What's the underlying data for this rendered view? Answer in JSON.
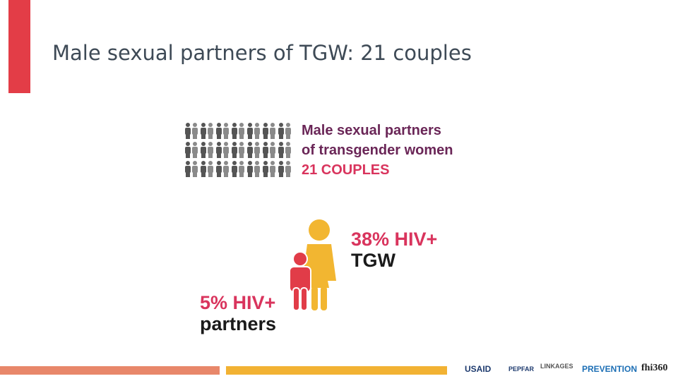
{
  "header": {
    "title": "Male sexual partners of TGW: 21 couples"
  },
  "infographic": {
    "heading": [
      "Male sexual partners",
      "of transgender women"
    ],
    "count": "21 COUPLES",
    "tgw": {
      "stat": "38% HIV+",
      "label": "TGW"
    },
    "partners": {
      "stat": "5% HIV+",
      "label": "partners"
    }
  },
  "footer": {
    "logos": [
      "USAID",
      "PEPFAR",
      "LINKAGES",
      "PREVENTION",
      "fhi360"
    ]
  }
}
